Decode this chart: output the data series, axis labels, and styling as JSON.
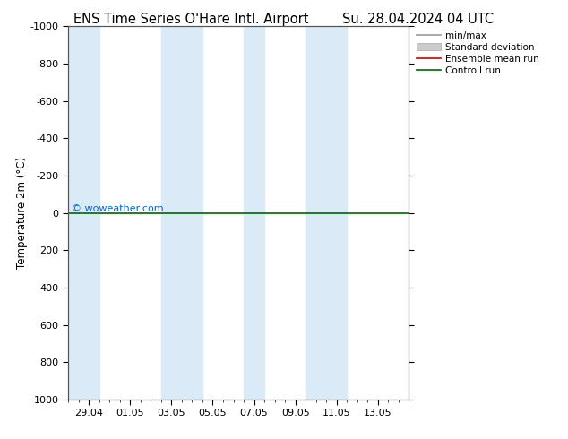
{
  "title_left": "ENS Time Series O'Hare Intl. Airport",
  "title_right": "Su. 28.04.2024 04 UTC",
  "ylabel": "Temperature 2m (°C)",
  "ylim_bottom": 1000,
  "ylim_top": -1000,
  "yticks": [
    -1000,
    -800,
    -600,
    -400,
    -200,
    0,
    200,
    400,
    600,
    800,
    1000
  ],
  "ytick_labels": [
    "-1000",
    "-800",
    "-600",
    "-400",
    "-200",
    "0",
    "200",
    "400",
    "600",
    "800",
    "1000"
  ],
  "xlim_min": 0.0,
  "xlim_max": 16.0,
  "xtick_positions": [
    1,
    3,
    5,
    7,
    9,
    11,
    13,
    15
  ],
  "xtick_labels": [
    "29.04",
    "01.05",
    "03.05",
    "05.05",
    "07.05",
    "09.05",
    "11.05",
    "13.05"
  ],
  "background_color": "#ffffff",
  "plot_bg_color": "#ffffff",
  "shaded_bands": [
    {
      "start": 0.0,
      "end": 1.5
    },
    {
      "start": 4.5,
      "end": 6.5
    },
    {
      "start": 8.5,
      "end": 9.5
    },
    {
      "start": 11.5,
      "end": 13.5
    }
  ],
  "shaded_color": "#daeaf7",
  "control_run_color": "#006600",
  "ensemble_mean_color": "#cc0000",
  "minmax_color": "#999999",
  "std_color": "#cccccc",
  "watermark": "© woweather.com",
  "watermark_color": "#0066cc",
  "title_fontsize": 10.5,
  "axis_fontsize": 8.5,
  "tick_fontsize": 8,
  "legend_fontsize": 7.5
}
